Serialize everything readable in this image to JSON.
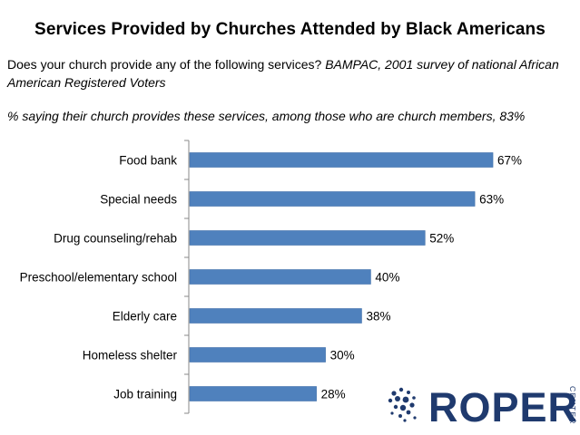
{
  "header": {
    "title": "Services Provided by Churches Attended by Black Americans",
    "question": "Does your church provide any of the following services?",
    "source": "BAMPAC, 2001 survey of national African American Registered Voters",
    "note": "% saying their church provides these services, among those who are church members, 83%"
  },
  "chart_data": {
    "type": "bar",
    "orientation": "horizontal",
    "title": "Services Provided by Churches Attended by Black Americans",
    "categories": [
      "Food bank",
      "Special needs",
      "Drug counseling/rehab",
      "Preschool/elementary school",
      "Elderly care",
      "Homeless shelter",
      "Job training"
    ],
    "values": [
      67,
      63,
      52,
      40,
      38,
      30,
      28
    ],
    "value_labels": [
      "67%",
      "63%",
      "52%",
      "40%",
      "38%",
      "30%",
      "28%"
    ],
    "xlim": [
      0,
      70
    ],
    "grid": false,
    "colors": {
      "bar": "#4f81bd"
    }
  },
  "logo": {
    "text": "ROPER",
    "side_text": "CENTER",
    "color": "#1f3a6e"
  }
}
